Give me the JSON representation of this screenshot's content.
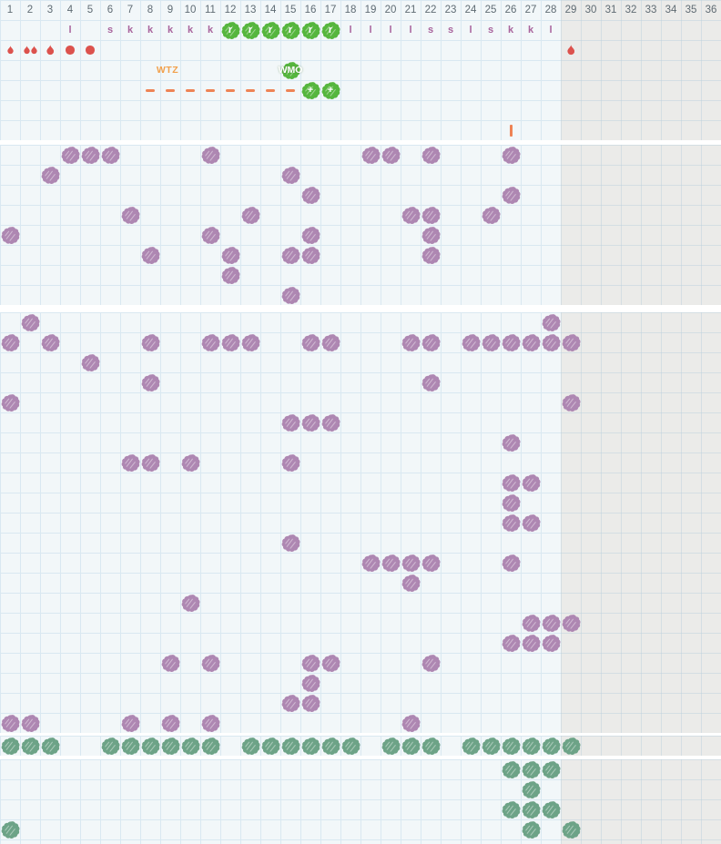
{
  "colors": {
    "grid_bg": "#f2f7f9",
    "grid_line": "#d9e8f1",
    "off_season_bg": "#ebebe9",
    "purple_mark": "#ae87b2",
    "teal_mark": "#6da387",
    "green_mark": "#56b63e",
    "red_icon": "#dc524d",
    "orange_icon": "#ee8355",
    "wtz_text_color": "#f2a04b",
    "letter_text_color": "#a8639c",
    "week_number_color": "#5f6b73"
  },
  "chart_data": {
    "type": "heatmap",
    "xlabel": "week",
    "columns": {
      "count": 36,
      "labels": [
        "1",
        "2",
        "3",
        "4",
        "5",
        "6",
        "7",
        "8",
        "9",
        "10",
        "11",
        "12",
        "13",
        "14",
        "15",
        "16",
        "17",
        "18",
        "19",
        "20",
        "21",
        "22",
        "23",
        "24",
        "25",
        "26",
        "27",
        "28",
        "29",
        "30",
        "31",
        "32",
        "33",
        "34",
        "35",
        "36"
      ],
      "off_season_from_col": 29
    },
    "header": {
      "letters": [
        {
          "col": 4,
          "ch": "l"
        },
        {
          "col": 6,
          "ch": "s"
        },
        {
          "col": 7,
          "ch": "k"
        },
        {
          "col": 8,
          "ch": "k"
        },
        {
          "col": 9,
          "ch": "k"
        },
        {
          "col": 10,
          "ch": "k"
        },
        {
          "col": 11,
          "ch": "k"
        },
        {
          "col": 18,
          "ch": "l"
        },
        {
          "col": 19,
          "ch": "l"
        },
        {
          "col": 20,
          "ch": "l"
        },
        {
          "col": 21,
          "ch": "l"
        },
        {
          "col": 22,
          "ch": "s"
        },
        {
          "col": 23,
          "ch": "s"
        },
        {
          "col": 24,
          "ch": "l"
        },
        {
          "col": 25,
          "ch": "s"
        },
        {
          "col": 26,
          "ch": "k"
        },
        {
          "col": 27,
          "ch": "k"
        },
        {
          "col": 28,
          "ch": "l"
        }
      ],
      "green_letter": "r",
      "green_cols": [
        12,
        13,
        14,
        15,
        16,
        17
      ],
      "moisture_icons": [
        {
          "col": 1,
          "icon": "drop-small"
        },
        {
          "col": 2,
          "icon": "drop-double"
        },
        {
          "col": 3,
          "icon": "drop"
        },
        {
          "col": 4,
          "icon": "dot"
        },
        {
          "col": 5,
          "icon": "dot"
        },
        {
          "col": 29,
          "icon": "drop"
        }
      ],
      "wtz": {
        "text": "WTZ"
      },
      "wmo": {
        "text": "WMO",
        "col": 15
      },
      "dash_cols": [
        8,
        9,
        10,
        11,
        12,
        13,
        14,
        15
      ],
      "plus_cols": [
        16,
        17
      ],
      "plus_glyph": "+",
      "tick_marker_col": 26
    },
    "sections": [
      {
        "id": "planting-block-1",
        "mark": "purple",
        "rows": 8,
        "cells": [
          [
            1,
            4
          ],
          [
            1,
            5
          ],
          [
            1,
            6
          ],
          [
            1,
            11
          ],
          [
            1,
            19
          ],
          [
            1,
            20
          ],
          [
            1,
            22
          ],
          [
            1,
            26
          ],
          [
            2,
            3
          ],
          [
            2,
            15
          ],
          [
            3,
            16
          ],
          [
            3,
            26
          ],
          [
            4,
            7
          ],
          [
            4,
            13
          ],
          [
            4,
            21
          ],
          [
            4,
            22
          ],
          [
            4,
            25
          ],
          [
            5,
            1
          ],
          [
            5,
            11
          ],
          [
            5,
            16
          ],
          [
            5,
            22
          ],
          [
            6,
            8
          ],
          [
            6,
            12
          ],
          [
            6,
            15
          ],
          [
            6,
            16
          ],
          [
            6,
            22
          ],
          [
            7,
            12
          ],
          [
            8,
            15
          ]
        ]
      },
      {
        "id": "planting-block-2",
        "mark": "purple",
        "rows": 21,
        "cells": [
          [
            1,
            2
          ],
          [
            1,
            28
          ],
          [
            2,
            1
          ],
          [
            2,
            3
          ],
          [
            2,
            8
          ],
          [
            2,
            11
          ],
          [
            2,
            12
          ],
          [
            2,
            13
          ],
          [
            2,
            16
          ],
          [
            2,
            17
          ],
          [
            2,
            21
          ],
          [
            2,
            22
          ],
          [
            2,
            24
          ],
          [
            2,
            25
          ],
          [
            2,
            26
          ],
          [
            2,
            27
          ],
          [
            2,
            28
          ],
          [
            2,
            29
          ],
          [
            3,
            5
          ],
          [
            4,
            8
          ],
          [
            4,
            22
          ],
          [
            5,
            1
          ],
          [
            5,
            29
          ],
          [
            6,
            15
          ],
          [
            6,
            16
          ],
          [
            6,
            17
          ],
          [
            7,
            26
          ],
          [
            8,
            7
          ],
          [
            8,
            8
          ],
          [
            8,
            10
          ],
          [
            8,
            15
          ],
          [
            9,
            26
          ],
          [
            9,
            27
          ],
          [
            10,
            26
          ],
          [
            11,
            26
          ],
          [
            11,
            27
          ],
          [
            12,
            15
          ],
          [
            13,
            19
          ],
          [
            13,
            20
          ],
          [
            13,
            21
          ],
          [
            13,
            22
          ],
          [
            13,
            26
          ],
          [
            14,
            21
          ],
          [
            15,
            10
          ],
          [
            16,
            27
          ],
          [
            16,
            28
          ],
          [
            16,
            29
          ],
          [
            17,
            26
          ],
          [
            17,
            27
          ],
          [
            17,
            28
          ],
          [
            18,
            9
          ],
          [
            18,
            11
          ],
          [
            18,
            16
          ],
          [
            18,
            17
          ],
          [
            18,
            22
          ],
          [
            19,
            16
          ],
          [
            20,
            15
          ],
          [
            20,
            16
          ],
          [
            21,
            1
          ],
          [
            21,
            2
          ],
          [
            21,
            7
          ],
          [
            21,
            9
          ],
          [
            21,
            11
          ],
          [
            21,
            21
          ]
        ]
      },
      {
        "id": "harvest-row",
        "mark": "teal",
        "rows": 1,
        "cells": [
          [
            1,
            1
          ],
          [
            1,
            2
          ],
          [
            1,
            3
          ],
          [
            1,
            6
          ],
          [
            1,
            7
          ],
          [
            1,
            8
          ],
          [
            1,
            9
          ],
          [
            1,
            10
          ],
          [
            1,
            11
          ],
          [
            1,
            13
          ],
          [
            1,
            14
          ],
          [
            1,
            15
          ],
          [
            1,
            16
          ],
          [
            1,
            17
          ],
          [
            1,
            18
          ],
          [
            1,
            20
          ],
          [
            1,
            21
          ],
          [
            1,
            22
          ],
          [
            1,
            24
          ],
          [
            1,
            25
          ],
          [
            1,
            26
          ],
          [
            1,
            27
          ],
          [
            1,
            28
          ],
          [
            1,
            29
          ]
        ]
      },
      {
        "id": "harvest-block",
        "mark": "teal",
        "rows": 4,
        "cells": [
          [
            1,
            26
          ],
          [
            1,
            27
          ],
          [
            1,
            28
          ],
          [
            2,
            27
          ],
          [
            3,
            26
          ],
          [
            3,
            27
          ],
          [
            3,
            28
          ],
          [
            4,
            1
          ],
          [
            4,
            27
          ],
          [
            4,
            29
          ]
        ]
      }
    ]
  }
}
